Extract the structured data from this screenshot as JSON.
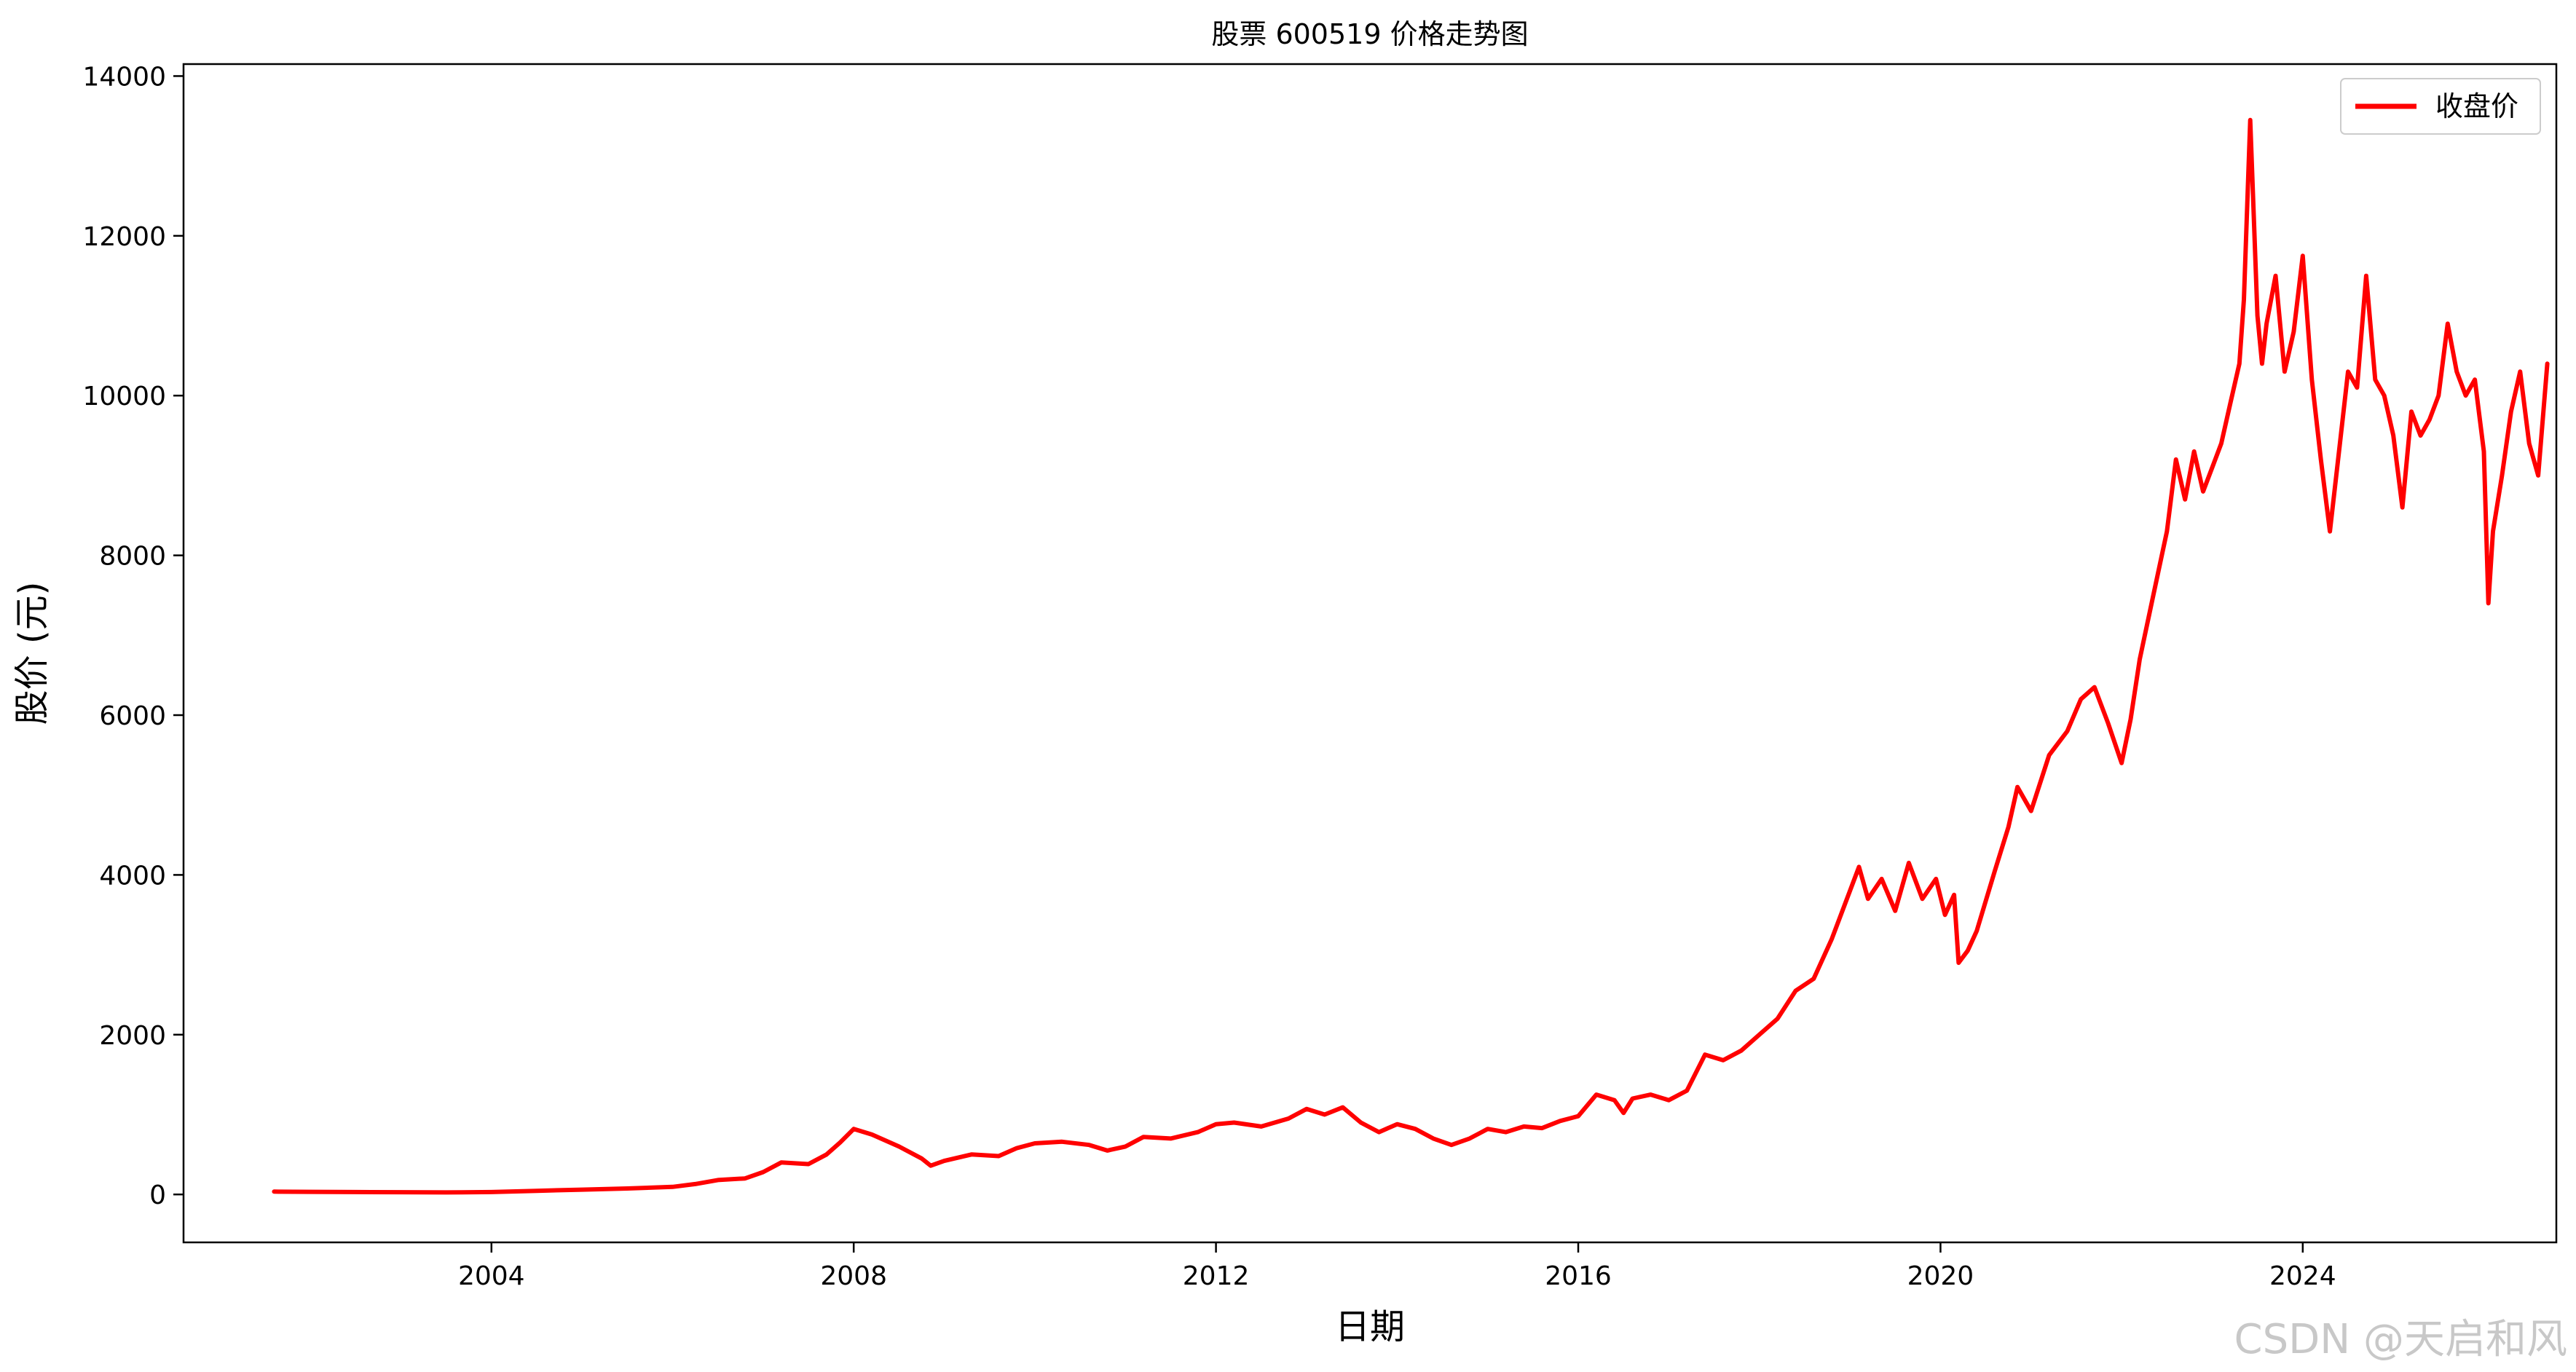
{
  "watermark": "CSDN @天启和风",
  "chart_data": {
    "type": "line",
    "title": "股票 600519 价格走势图",
    "xlabel": "日期",
    "ylabel": "股价 (元)",
    "xlim": [
      2000.6,
      2026.8
    ],
    "ylim": [
      -600,
      14150
    ],
    "xticks": [
      2004,
      2008,
      2012,
      2016,
      2020,
      2024
    ],
    "yticks": [
      0,
      2000,
      4000,
      6000,
      8000,
      10000,
      12000,
      14000
    ],
    "grid": false,
    "legend": {
      "position": "top-right"
    },
    "series": [
      {
        "name": "收盘价",
        "color": "#ff0000",
        "points": [
          [
            2001.6,
            35
          ],
          [
            2002.0,
            33
          ],
          [
            2002.5,
            30
          ],
          [
            2003.0,
            28
          ],
          [
            2003.5,
            25
          ],
          [
            2004.0,
            30
          ],
          [
            2004.5,
            45
          ],
          [
            2005.0,
            60
          ],
          [
            2005.5,
            75
          ],
          [
            2006.0,
            95
          ],
          [
            2006.25,
            130
          ],
          [
            2006.5,
            180
          ],
          [
            2006.8,
            200
          ],
          [
            2007.0,
            280
          ],
          [
            2007.2,
            400
          ],
          [
            2007.5,
            380
          ],
          [
            2007.7,
            500
          ],
          [
            2007.85,
            650
          ],
          [
            2008.0,
            820
          ],
          [
            2008.2,
            750
          ],
          [
            2008.5,
            600
          ],
          [
            2008.75,
            450
          ],
          [
            2008.85,
            360
          ],
          [
            2009.0,
            420
          ],
          [
            2009.3,
            500
          ],
          [
            2009.6,
            480
          ],
          [
            2009.8,
            580
          ],
          [
            2010.0,
            640
          ],
          [
            2010.3,
            660
          ],
          [
            2010.6,
            620
          ],
          [
            2010.8,
            550
          ],
          [
            2011.0,
            600
          ],
          [
            2011.2,
            720
          ],
          [
            2011.5,
            700
          ],
          [
            2011.8,
            780
          ],
          [
            2012.0,
            880
          ],
          [
            2012.2,
            900
          ],
          [
            2012.5,
            850
          ],
          [
            2012.8,
            950
          ],
          [
            2013.0,
            1070
          ],
          [
            2013.2,
            1000
          ],
          [
            2013.4,
            1090
          ],
          [
            2013.6,
            900
          ],
          [
            2013.8,
            780
          ],
          [
            2014.0,
            880
          ],
          [
            2014.2,
            820
          ],
          [
            2014.4,
            700
          ],
          [
            2014.6,
            620
          ],
          [
            2014.8,
            700
          ],
          [
            2015.0,
            820
          ],
          [
            2015.2,
            780
          ],
          [
            2015.4,
            850
          ],
          [
            2015.6,
            830
          ],
          [
            2015.8,
            920
          ],
          [
            2016.0,
            980
          ],
          [
            2016.2,
            1250
          ],
          [
            2016.4,
            1180
          ],
          [
            2016.5,
            1020
          ],
          [
            2016.6,
            1200
          ],
          [
            2016.8,
            1250
          ],
          [
            2017.0,
            1180
          ],
          [
            2017.2,
            1300
          ],
          [
            2017.4,
            1750
          ],
          [
            2017.6,
            1680
          ],
          [
            2017.8,
            1800
          ],
          [
            2018.0,
            2000
          ],
          [
            2018.2,
            2200
          ],
          [
            2018.4,
            2550
          ],
          [
            2018.6,
            2700
          ],
          [
            2018.8,
            3200
          ],
          [
            2019.0,
            3800
          ],
          [
            2019.1,
            4100
          ],
          [
            2019.2,
            3700
          ],
          [
            2019.35,
            3950
          ],
          [
            2019.5,
            3550
          ],
          [
            2019.65,
            4150
          ],
          [
            2019.8,
            3700
          ],
          [
            2019.95,
            3950
          ],
          [
            2020.05,
            3500
          ],
          [
            2020.15,
            3750
          ],
          [
            2020.2,
            2900
          ],
          [
            2020.3,
            3050
          ],
          [
            2020.4,
            3300
          ],
          [
            2020.6,
            4050
          ],
          [
            2020.75,
            4600
          ],
          [
            2020.85,
            5100
          ],
          [
            2021.0,
            4800
          ],
          [
            2021.2,
            5500
          ],
          [
            2021.4,
            5800
          ],
          [
            2021.55,
            6200
          ],
          [
            2021.7,
            6350
          ],
          [
            2021.85,
            5900
          ],
          [
            2022.0,
            5400
          ],
          [
            2022.1,
            5950
          ],
          [
            2022.2,
            6700
          ],
          [
            2022.35,
            7500
          ],
          [
            2022.5,
            8300
          ],
          [
            2022.6,
            9200
          ],
          [
            2022.7,
            8700
          ],
          [
            2022.8,
            9300
          ],
          [
            2022.9,
            8800
          ],
          [
            2023.0,
            9100
          ],
          [
            2023.1,
            9400
          ],
          [
            2023.2,
            9900
          ],
          [
            2023.3,
            10400
          ],
          [
            2023.35,
            11200
          ],
          [
            2023.42,
            13450
          ],
          [
            2023.5,
            11000
          ],
          [
            2023.55,
            10400
          ],
          [
            2023.6,
            10900
          ],
          [
            2023.7,
            11500
          ],
          [
            2023.8,
            10300
          ],
          [
            2023.9,
            10800
          ],
          [
            2024.0,
            11750
          ],
          [
            2024.1,
            10200
          ],
          [
            2024.2,
            9200
          ],
          [
            2024.3,
            8300
          ],
          [
            2024.4,
            9300
          ],
          [
            2024.5,
            10300
          ],
          [
            2024.6,
            10100
          ],
          [
            2024.7,
            11500
          ],
          [
            2024.8,
            10200
          ],
          [
            2024.9,
            10000
          ],
          [
            2025.0,
            9500
          ],
          [
            2025.1,
            8600
          ],
          [
            2025.2,
            9800
          ],
          [
            2025.3,
            9500
          ],
          [
            2025.4,
            9700
          ],
          [
            2025.5,
            10000
          ],
          [
            2025.6,
            10900
          ],
          [
            2025.7,
            10300
          ],
          [
            2025.8,
            10000
          ],
          [
            2025.9,
            10200
          ],
          [
            2026.0,
            9300
          ],
          [
            2026.05,
            7400
          ],
          [
            2026.1,
            8300
          ],
          [
            2026.2,
            9000
          ],
          [
            2026.3,
            9800
          ],
          [
            2026.4,
            10300
          ],
          [
            2026.5,
            9400
          ],
          [
            2026.6,
            9000
          ],
          [
            2026.7,
            10400
          ]
        ]
      }
    ]
  }
}
